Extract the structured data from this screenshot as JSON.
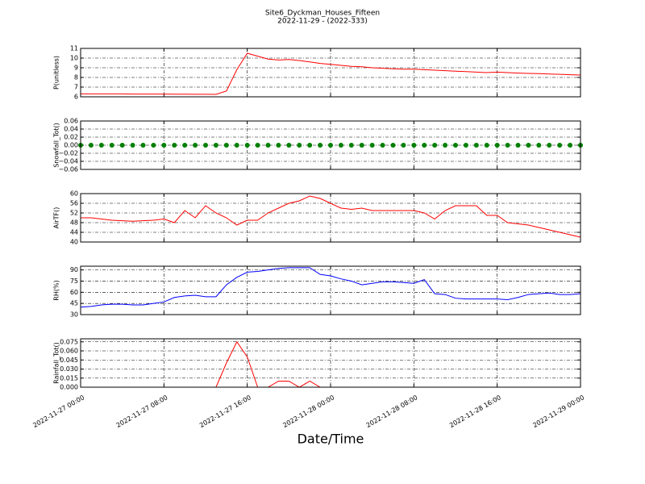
{
  "title": "Site6_Dyckman_Houses_Fifteen",
  "subtitle": "2022-11-29 - (2022-333)",
  "xlabel": "Date/Time",
  "xlim": [
    "2022-11-27 00:00",
    "2022-11-29 00:00"
  ],
  "xticks": [
    "2022-11-27 00:00",
    "2022-11-27 08:00",
    "2022-11-27 16:00",
    "2022-11-28 00:00",
    "2022-11-28 08:00",
    "2022-11-28 16:00",
    "2022-11-29 00:00"
  ],
  "x": [
    "2022-11-27 00:00",
    "2022-11-27 01:00",
    "2022-11-27 02:00",
    "2022-11-27 03:00",
    "2022-11-27 04:00",
    "2022-11-27 05:00",
    "2022-11-27 06:00",
    "2022-11-27 07:00",
    "2022-11-27 08:00",
    "2022-11-27 09:00",
    "2022-11-27 10:00",
    "2022-11-27 11:00",
    "2022-11-27 12:00",
    "2022-11-27 13:00",
    "2022-11-27 14:00",
    "2022-11-27 15:00",
    "2022-11-27 16:00",
    "2022-11-27 17:00",
    "2022-11-27 18:00",
    "2022-11-27 19:00",
    "2022-11-27 20:00",
    "2022-11-27 21:00",
    "2022-11-27 22:00",
    "2022-11-27 23:00",
    "2022-11-28 00:00",
    "2022-11-28 01:00",
    "2022-11-28 02:00",
    "2022-11-28 03:00",
    "2022-11-28 04:00",
    "2022-11-28 05:00",
    "2022-11-28 06:00",
    "2022-11-28 07:00",
    "2022-11-28 08:00",
    "2022-11-28 09:00",
    "2022-11-28 10:00",
    "2022-11-28 11:00",
    "2022-11-28 12:00",
    "2022-11-28 13:00",
    "2022-11-28 14:00",
    "2022-11-28 15:00",
    "2022-11-28 16:00",
    "2022-11-28 17:00",
    "2022-11-28 18:00",
    "2022-11-28 19:00",
    "2022-11-28 20:00",
    "2022-11-28 21:00",
    "2022-11-28 22:00",
    "2022-11-28 23:00",
    "2022-11-29 00:00"
  ],
  "grid": true,
  "chart_data": [
    {
      "type": "line",
      "ylabel": "P(unitless)",
      "ylim": [
        6,
        11
      ],
      "yticks": [
        6,
        7,
        8,
        9,
        10,
        11
      ],
      "series": [
        {
          "color": "#ff0000",
          "values": [
            6.3,
            6.3,
            6.3,
            6.3,
            6.3,
            6.28,
            6.28,
            6.28,
            6.28,
            6.27,
            6.27,
            6.26,
            6.26,
            6.25,
            6.6,
            8.8,
            10.5,
            10.2,
            9.9,
            9.8,
            9.85,
            9.75,
            9.6,
            9.45,
            9.35,
            9.25,
            9.15,
            9.1,
            9.0,
            8.95,
            8.9,
            8.85,
            8.85,
            8.8,
            8.75,
            8.7,
            8.65,
            8.6,
            8.55,
            8.5,
            8.55,
            8.5,
            8.45,
            8.42,
            8.4,
            8.35,
            8.32,
            8.28,
            8.25
          ]
        }
      ]
    },
    {
      "type": "scatter",
      "ylabel": "Snowfall_Tot()",
      "ylim": [
        -0.06,
        0.06
      ],
      "yticks": [
        {
          "value": -0.06,
          "label": "−0.06"
        },
        {
          "value": -0.04,
          "label": "−0.04"
        },
        {
          "value": -0.02,
          "label": "−0.02"
        },
        {
          "value": 0,
          "label": "0.00"
        },
        {
          "value": 0.02,
          "label": "0.02"
        },
        {
          "value": 0.04,
          "label": "0.04"
        },
        {
          "value": 0.06,
          "label": "0.06"
        }
      ],
      "series": [
        {
          "color": "#008000",
          "values": [
            0,
            0,
            0,
            0,
            0,
            0,
            0,
            0,
            0,
            0,
            0,
            0,
            0,
            0,
            0,
            0,
            0,
            0,
            0,
            0,
            0,
            0,
            0,
            0,
            0,
            0,
            0,
            0,
            0,
            0,
            0,
            0,
            0,
            0,
            0,
            0,
            0,
            0,
            0,
            0,
            0,
            0,
            0,
            0,
            0,
            0,
            0,
            0,
            0
          ]
        }
      ]
    },
    {
      "type": "line",
      "ylabel": "AirTF()",
      "ylim": [
        40,
        60
      ],
      "yticks": [
        40,
        44,
        48,
        52,
        56,
        60
      ],
      "series": [
        {
          "color": "#ff0000",
          "values": [
            50,
            50,
            49.5,
            49,
            48.8,
            48.6,
            48.8,
            49,
            49.5,
            48,
            53,
            50,
            55,
            52,
            50,
            47,
            49,
            49,
            52,
            54,
            56,
            57,
            59,
            58,
            56,
            54,
            53.5,
            54,
            53,
            53,
            53,
            53,
            53,
            52,
            49.5,
            53,
            55,
            55,
            55,
            51,
            51,
            48,
            47.5,
            47,
            46,
            45,
            44,
            43,
            42
          ]
        }
      ]
    },
    {
      "type": "line",
      "ylabel": "RH(%)",
      "ylim": [
        30,
        95
      ],
      "yticks": [
        30,
        45,
        60,
        75,
        90
      ],
      "series": [
        {
          "color": "#0000ff",
          "values": [
            40,
            41,
            43,
            44,
            44,
            43,
            43,
            45,
            47,
            53,
            55,
            56,
            54,
            54,
            70,
            80,
            87,
            88,
            90,
            92,
            93,
            93,
            93,
            84,
            82,
            78,
            75,
            70,
            72,
            74,
            74,
            73,
            72,
            77,
            58,
            57,
            52,
            51,
            51,
            51,
            51,
            50,
            53,
            57,
            58,
            59,
            57,
            57,
            58
          ]
        }
      ]
    },
    {
      "type": "line",
      "ylabel": "Rainfall_Tot()",
      "ylim": [
        0,
        0.08
      ],
      "yticks": [
        {
          "value": 0,
          "label": "0.000"
        },
        {
          "value": 0.015,
          "label": "0.015"
        },
        {
          "value": 0.03,
          "label": "0.030"
        },
        {
          "value": 0.045,
          "label": "0.045"
        },
        {
          "value": 0.06,
          "label": "0.060"
        },
        {
          "value": 0.075,
          "label": "0.075"
        }
      ],
      "series": [
        {
          "color": "#ff0000",
          "values": [
            0,
            0,
            0,
            0,
            0,
            0,
            0,
            0,
            0,
            0,
            0,
            0,
            0,
            0,
            0.04,
            0.075,
            0.05,
            0,
            0,
            0.01,
            0.01,
            0,
            0.01,
            0,
            0,
            0,
            0,
            0,
            0,
            0,
            0,
            0,
            0,
            0,
            0,
            0,
            0,
            0,
            0,
            0,
            0,
            0,
            0,
            0,
            0,
            0,
            0,
            0,
            0
          ]
        }
      ]
    }
  ]
}
